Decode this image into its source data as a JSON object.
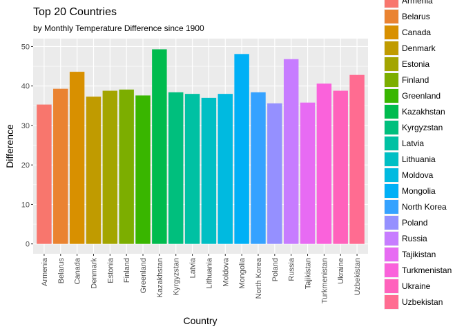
{
  "chart_data": {
    "type": "bar",
    "title": "Top 20 Countries",
    "subtitle": "by Monthly Temperature Difference since 1900",
    "xlabel": "Country",
    "ylabel": "Difference",
    "ylim": [
      -2.5,
      52
    ],
    "yticks": [
      0,
      10,
      20,
      30,
      40,
      50
    ],
    "grid": true,
    "legend_position": "right",
    "categories": [
      "Armenia",
      "Belarus",
      "Canada",
      "Denmark",
      "Estonia",
      "Finland",
      "Greenland",
      "Kazakhstan",
      "Kyrgyzstan",
      "Latvia",
      "Lithuania",
      "Moldova",
      "Mongolia",
      "North Korea",
      "Poland",
      "Russia",
      "Tajikistan",
      "Turkmenistan",
      "Ukraine",
      "Uzbekistan"
    ],
    "values": [
      35.3,
      39.3,
      43.6,
      37.3,
      38.8,
      39.1,
      37.6,
      49.3,
      38.4,
      38.0,
      37.0,
      38.0,
      48.1,
      38.4,
      35.6,
      46.8,
      35.8,
      40.6,
      38.8,
      42.8
    ],
    "colors": [
      "#F8766D",
      "#EA8331",
      "#D89000",
      "#C09B00",
      "#A3A500",
      "#7CAE00",
      "#39B600",
      "#00BB4E",
      "#00BF7D",
      "#00C1A3",
      "#00BFC4",
      "#00BAE0",
      "#00B0F6",
      "#35A2FF",
      "#9590FF",
      "#C77CFF",
      "#E76BF3",
      "#FA62DB",
      "#FF62BC",
      "#FF6C91"
    ],
    "legend": [
      "Armenia",
      "Belarus",
      "Canada",
      "Denmark",
      "Estonia",
      "Finland",
      "Greenland",
      "Kazakhstan",
      "Kyrgyzstan",
      "Latvia",
      "Lithuania",
      "Moldova",
      "Mongolia",
      "North Korea",
      "Poland",
      "Russia",
      "Tajikistan",
      "Turkmenistan",
      "Ukraine",
      "Uzbekistan"
    ]
  }
}
